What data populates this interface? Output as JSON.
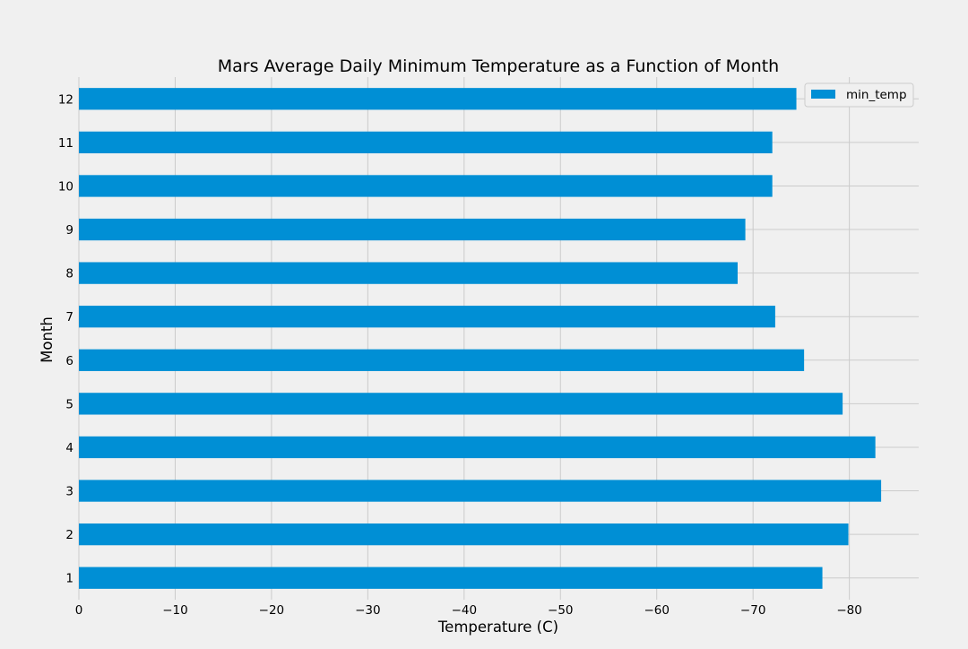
{
  "chart_data": {
    "type": "bar",
    "orientation": "horizontal",
    "title": "Mars Average Daily Minimum Temperature as a Function of Month",
    "xlabel": "Temperature (C)",
    "ylabel": "Month",
    "categories": [
      "1",
      "2",
      "3",
      "4",
      "5",
      "6",
      "7",
      "8",
      "9",
      "10",
      "11",
      "12"
    ],
    "series": [
      {
        "name": "min_temp",
        "color": "#008fd5",
        "values": [
          -77.2,
          -79.9,
          -83.3,
          -82.7,
          -79.3,
          -75.3,
          -72.3,
          -68.4,
          -69.2,
          -72.0,
          -72.0,
          -74.5
        ]
      }
    ],
    "xlim": [
      0,
      -87.2
    ],
    "x_axis_inverted": true,
    "xticks": [
      0,
      -10,
      -20,
      -30,
      -40,
      -50,
      -60,
      -70,
      -80
    ],
    "xtick_labels": [
      "0",
      "−10",
      "−20",
      "−30",
      "−40",
      "−50",
      "−60",
      "−70",
      "−80"
    ],
    "grid": true,
    "legend_position": "top-right",
    "style": "fivethirtyeight",
    "colors": {
      "background": "#f0f0f0",
      "grid": "#cbcbcb",
      "bar": "#008fd5"
    }
  }
}
